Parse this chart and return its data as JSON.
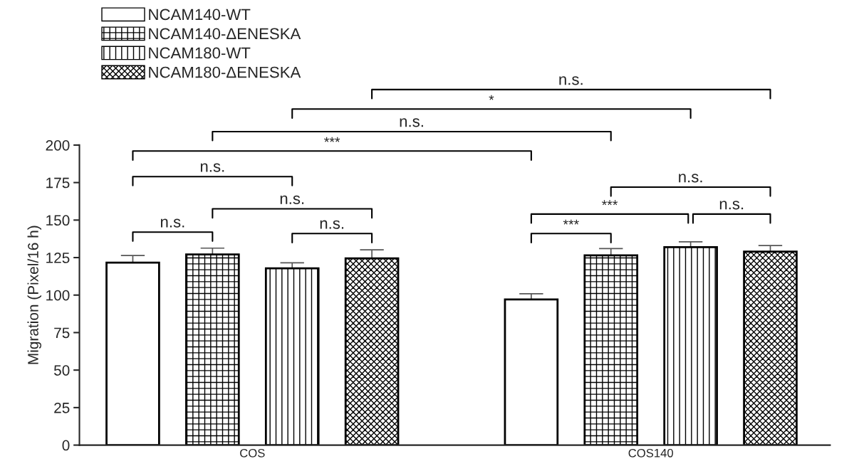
{
  "chart_data": {
    "type": "bar",
    "ylabel": "Migration (Pixel/16 h)",
    "categories": [
      "COS",
      "COS140"
    ],
    "series": [
      {
        "name": "NCAM140-WT",
        "color": "#ffffff",
        "values": [
          121.6,
          97.1
        ],
        "errors": [
          4.8,
          3.8
        ]
      },
      {
        "name": "NCAM140-ΔENESKA",
        "color": "#000000",
        "values": [
          127.1,
          126.5
        ],
        "errors": [
          4.2,
          4.5
        ]
      },
      {
        "name": "NCAM180-WT",
        "color": "#000000",
        "values": [
          117.8,
          131.9
        ],
        "errors": [
          3.7,
          3.6
        ]
      },
      {
        "name": "NCAM180-ΔENESKA",
        "color": "#000000",
        "values": [
          124.5,
          129.0
        ],
        "errors": [
          5.7,
          4.0
        ]
      }
    ],
    "ylim": [
      0,
      200
    ],
    "yticks": [
      0,
      25,
      50,
      75,
      100,
      125,
      150,
      175,
      200
    ],
    "grid": false,
    "legend": "top left",
    "annotations": [
      "n.s.",
      "*",
      "n.s.",
      "***",
      "n.s.",
      "n.s.",
      "n.s.",
      "***",
      "n.s.",
      "n.s.",
      "n.s.",
      "***"
    ]
  }
}
